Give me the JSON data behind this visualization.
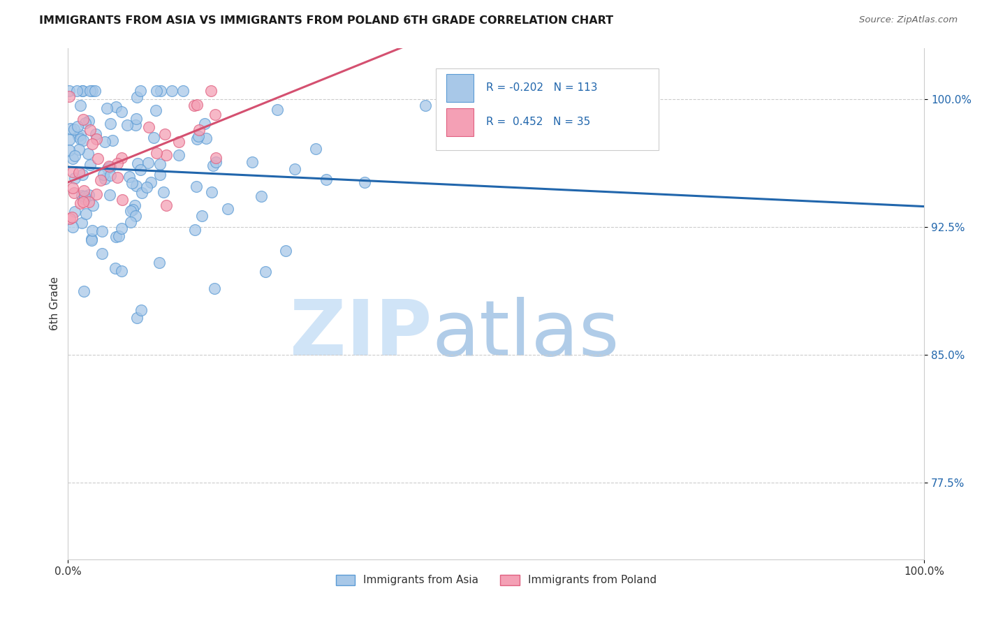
{
  "title": "IMMIGRANTS FROM ASIA VS IMMIGRANTS FROM POLAND 6TH GRADE CORRELATION CHART",
  "source": "Source: ZipAtlas.com",
  "ylabel": "6th Grade",
  "ytick_labels": [
    "100.0%",
    "92.5%",
    "85.0%",
    "77.5%"
  ],
  "ytick_values": [
    1.0,
    0.925,
    0.85,
    0.775
  ],
  "xlim": [
    0.0,
    1.0
  ],
  "ylim": [
    0.73,
    1.03
  ],
  "legend_blue_label": "Immigrants from Asia",
  "legend_pink_label": "Immigrants from Poland",
  "R_blue": -0.202,
  "N_blue": 113,
  "R_pink": 0.452,
  "N_pink": 35,
  "blue_fill": "#a8c8e8",
  "blue_edge": "#5b9bd5",
  "pink_fill": "#f4a0b5",
  "pink_edge": "#e06080",
  "blue_line_color": "#2166ac",
  "pink_line_color": "#d45070",
  "background_color": "#ffffff",
  "grid_color": "#cccccc",
  "watermark_zip_color": "#d0e4f7",
  "watermark_atlas_color": "#b0cce8"
}
